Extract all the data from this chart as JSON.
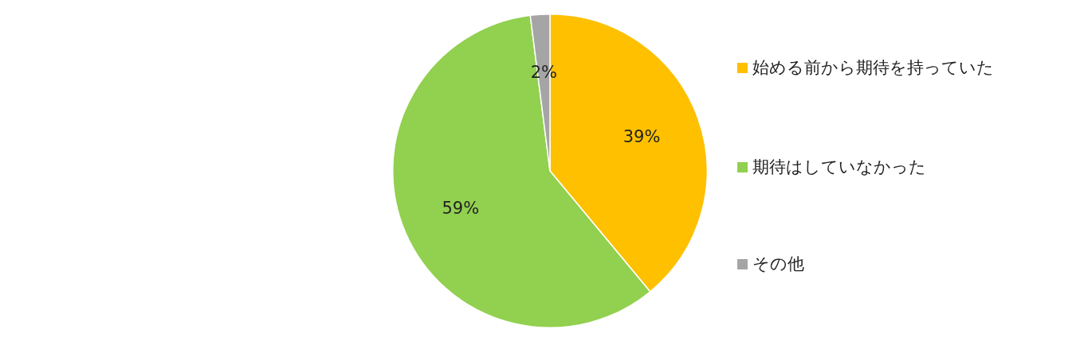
{
  "chart_data": {
    "type": "pie",
    "categories": [
      "始める前から期待を持っていた",
      "期待はしていなかった",
      "その他"
    ],
    "values": [
      39,
      59,
      2
    ],
    "colors": [
      "#ffc000",
      "#92d050",
      "#a5a5a5"
    ],
    "value_labels": [
      "39%",
      "59%",
      "2%"
    ],
    "legend": "right"
  }
}
